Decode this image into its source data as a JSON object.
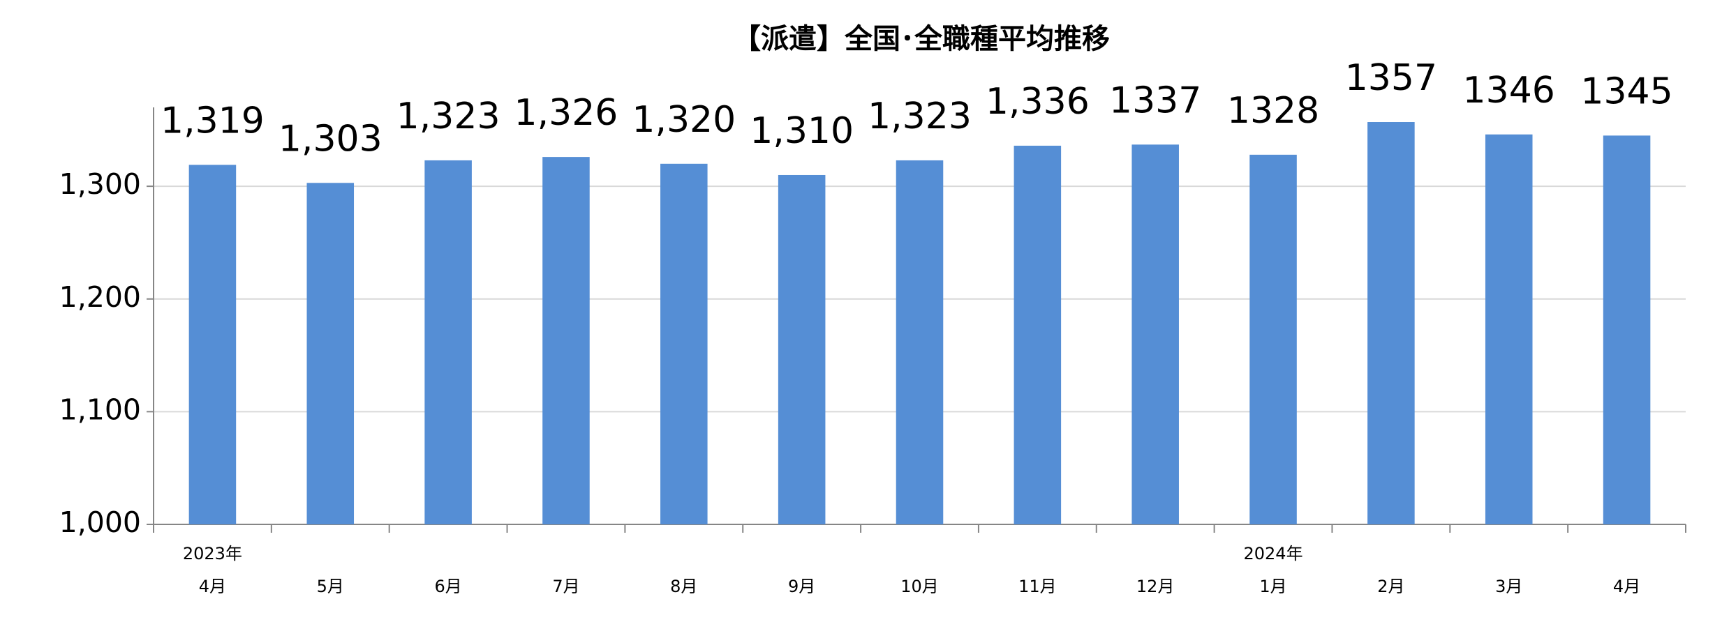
{
  "chart_data": {
    "type": "bar",
    "title": "【派遣】全国･全職種平均推移",
    "categories": [
      "4月",
      "5月",
      "6月",
      "7月",
      "8月",
      "9月",
      "10月",
      "11月",
      "12月",
      "1月",
      "2月",
      "3月",
      "4月"
    ],
    "year_labels": [
      "2023年",
      null,
      null,
      null,
      null,
      null,
      null,
      null,
      null,
      "2024年",
      null,
      null,
      null
    ],
    "values": [
      1319,
      1303,
      1323,
      1326,
      1320,
      1310,
      1323,
      1336,
      1337,
      1328,
      1357,
      1346,
      1345
    ],
    "value_labels": [
      "1,319",
      "1,303",
      "1,323",
      "1,326",
      "1,320",
      "1,310",
      "1,323",
      "1,336",
      "1337",
      "1328",
      "1357",
      "1346",
      "1345"
    ],
    "color": "#558ed5",
    "ylim": [
      1000,
      1370
    ],
    "yticks": [
      {
        "value": 1000,
        "label": "1,000"
      },
      {
        "value": 1100,
        "label": "1,100"
      },
      {
        "value": 1200,
        "label": "1,200"
      },
      {
        "value": 1300,
        "label": "1,300"
      }
    ],
    "grid": true
  }
}
